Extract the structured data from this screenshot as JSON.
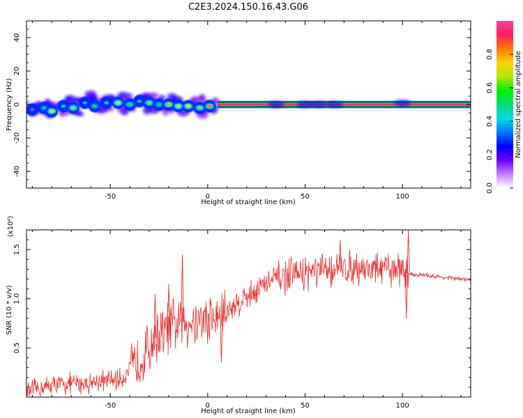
{
  "figure_title": "C2E3.2024.150.16.43.G06",
  "chart_data": [
    {
      "type": "heatmap",
      "title": "C2E3.2024.150.16.43.G06",
      "xlabel": "Height of straight line (km)",
      "ylabel": "Frequency (Hz)",
      "xlim": [
        -93,
        135
      ],
      "ylim": [
        -50,
        50
      ],
      "x_ticks": [
        -50,
        0,
        50,
        100
      ],
      "y_ticks": [
        -40,
        -20,
        0,
        20,
        40
      ],
      "colorbar": {
        "label": "Normalized spectral amplitude",
        "range": [
          0.0,
          1.0
        ],
        "ticks": [
          "0.0",
          "0.2",
          "0.4",
          "0.6",
          "0.8"
        ],
        "colors": [
          "#ffffff",
          "#c880ff",
          "#6a00ff",
          "#0000ff",
          "#0078ff",
          "#00dcdc",
          "#00dc78",
          "#00f000",
          "#b4e600",
          "#ffd200",
          "#ff7800",
          "#ff2060",
          "#ff3da0"
        ]
      },
      "line": {
        "x_start": 5,
        "x_end": 135,
        "frequency": 0,
        "amplitude": 0.95
      },
      "blobs": [
        {
          "x": -90,
          "f": -3,
          "amp": 0.35
        },
        {
          "x": -84,
          "f": -2,
          "amp": 0.5
        },
        {
          "x": -80,
          "f": -4,
          "amp": 0.75
        },
        {
          "x": -74,
          "f": -1,
          "amp": 0.45
        },
        {
          "x": -69,
          "f": -2,
          "amp": 0.65
        },
        {
          "x": -63,
          "f": 1,
          "amp": 0.4
        },
        {
          "x": -58,
          "f": -1,
          "amp": 0.55
        },
        {
          "x": -52,
          "f": 1,
          "amp": 0.45
        },
        {
          "x": -46,
          "f": 1,
          "amp": 0.7
        },
        {
          "x": -40,
          "f": 0,
          "amp": 0.6
        },
        {
          "x": -35,
          "f": 2,
          "amp": 0.45
        },
        {
          "x": -30,
          "f": 1,
          "amp": 0.65
        },
        {
          "x": -25,
          "f": 0,
          "amp": 0.55
        },
        {
          "x": -20,
          "f": 0,
          "amp": 0.8
        },
        {
          "x": -15,
          "f": -1,
          "amp": 0.7
        },
        {
          "x": -10,
          "f": -1,
          "amp": 0.75
        },
        {
          "x": -4,
          "f": -2,
          "amp": 0.65
        },
        {
          "x": 1,
          "f": -1,
          "amp": 0.85
        }
      ],
      "streaks": [
        {
          "x": 35,
          "f": 0
        },
        {
          "x": 50,
          "f": 0
        },
        {
          "x": 57,
          "f": 0
        },
        {
          "x": 65,
          "f": 0
        },
        {
          "x": 100,
          "f": 1
        }
      ]
    },
    {
      "type": "line",
      "xlabel": "Height of straight line (km)",
      "ylabel": "SNR (10 * v/v)",
      "scale_label": "(x10⁴)",
      "xlim": [
        -93,
        135
      ],
      "ylim": [
        0,
        1.7
      ],
      "x_ticks": [
        -50,
        0,
        50,
        100
      ],
      "y_ticks": [
        "0.5",
        "1.0",
        "1.5"
      ],
      "line_color": "#e83030",
      "anchor_points": [
        {
          "x": -93,
          "y": 0.05
        },
        {
          "x": -80,
          "y": 0.12
        },
        {
          "x": -60,
          "y": 0.15
        },
        {
          "x": -45,
          "y": 0.18
        },
        {
          "x": -38,
          "y": 0.3
        },
        {
          "x": -33,
          "y": 0.42
        },
        {
          "x": -28,
          "y": 0.58
        },
        {
          "x": -22,
          "y": 0.68
        },
        {
          "x": -15,
          "y": 0.75
        },
        {
          "x": -5,
          "y": 0.78
        },
        {
          "x": 5,
          "y": 0.8
        },
        {
          "x": 15,
          "y": 0.95
        },
        {
          "x": 25,
          "y": 1.1
        },
        {
          "x": 35,
          "y": 1.2
        },
        {
          "x": 45,
          "y": 1.25
        },
        {
          "x": 55,
          "y": 1.27
        },
        {
          "x": 65,
          "y": 1.3
        },
        {
          "x": 75,
          "y": 1.32
        },
        {
          "x": 85,
          "y": 1.3
        },
        {
          "x": 95,
          "y": 1.3
        },
        {
          "x": 100,
          "y": 1.3
        },
        {
          "x": 104,
          "y": 1.25
        },
        {
          "x": 115,
          "y": 1.23
        },
        {
          "x": 125,
          "y": 1.21
        },
        {
          "x": 135,
          "y": 1.19
        }
      ],
      "spikes": [
        {
          "x": -13,
          "y": 1.45
        },
        {
          "x": -27,
          "y": 1.05
        },
        {
          "x": -20,
          "y": 1.15
        },
        {
          "x": 7,
          "y": 0.35
        },
        {
          "x": 68,
          "y": 1.6
        },
        {
          "x": 103,
          "y": 1.7
        },
        {
          "x": 102,
          "y": 0.8
        }
      ]
    }
  ]
}
